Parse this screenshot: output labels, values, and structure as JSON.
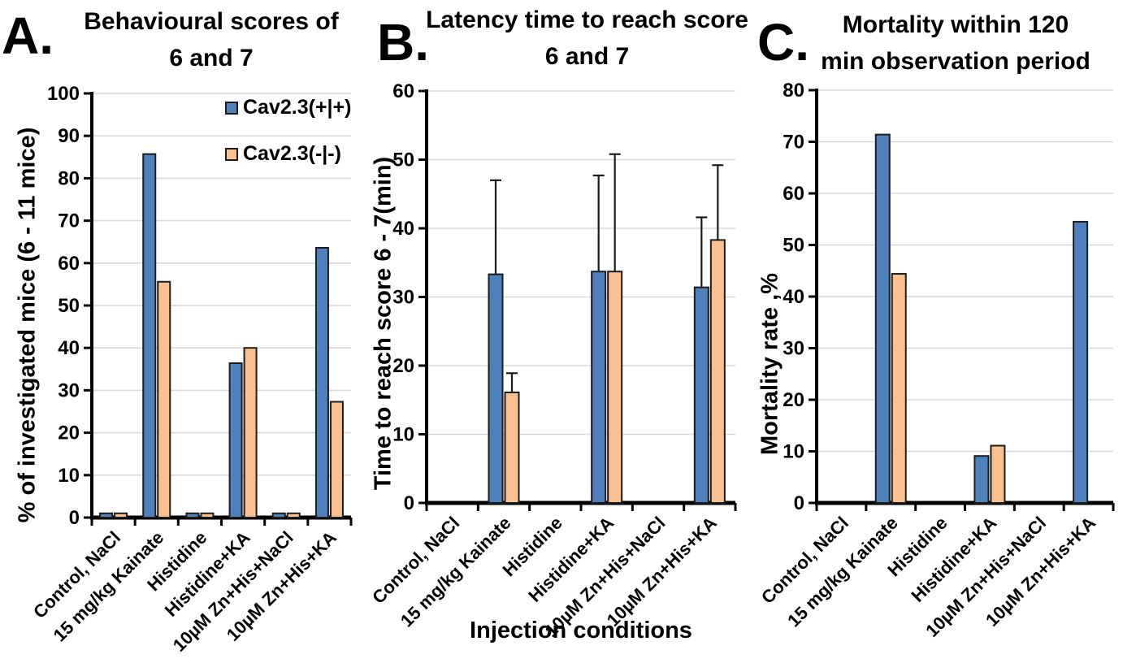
{
  "figure": {
    "panels": [
      {
        "letter": "A.",
        "title_line1": "Behavioural scores of",
        "title_line2": "6 and 7"
      },
      {
        "letter": "B.",
        "title_line1": "Latency time to reach score",
        "title_line2": "6 and 7"
      },
      {
        "letter": "C.",
        "title_line1": "Mortality within 120",
        "title_line2": "min observation period"
      }
    ],
    "colors": {
      "series_blue": "#4F81BD",
      "series_orange": "#FAC090",
      "bar_border": "#1C1C1C",
      "gridline": "#D9D9D9",
      "axis": "#000000"
    }
  },
  "chart_data": [
    {
      "type": "bar",
      "panel": "A",
      "title": "Behavioural scores of 6 and 7",
      "xlabel": "",
      "ylabel": "% of investigated mice (6 - 11 mice)",
      "ylim": [
        0,
        100
      ],
      "ytick_step": 10,
      "ytick_labels": [
        "0",
        "10",
        "20",
        "30",
        "40",
        "50",
        "60",
        "70",
        "80",
        "90",
        "100"
      ],
      "grid": true,
      "categories": [
        "Control, NaCl",
        "15 mg/kg Kainate",
        "Histidine",
        "Histidine+KA",
        "10µM Zn+His+NaCl",
        "10µM Zn+His+KA"
      ],
      "series": [
        {
          "name": "Cav2.3(+|+)",
          "color": "#4F81BD",
          "values": [
            1,
            85.7,
            1,
            36.4,
            1,
            63.6
          ]
        },
        {
          "name": "Cav2.3(-|-)",
          "color": "#FAC090",
          "values": [
            1,
            55.6,
            1,
            40,
            1,
            27.3
          ]
        }
      ],
      "legend": {
        "position": "top-right-inside",
        "entries": [
          "Cav2.3(+|+)",
          "Cav2.3(-|-)"
        ]
      }
    },
    {
      "type": "bar",
      "panel": "B",
      "title": "Latency time to reach score 6 and 7",
      "xlabel": "Injection conditions",
      "ylabel": "Time to reach score 6 - 7(min)",
      "ylim": [
        0,
        60
      ],
      "ytick_step": 10,
      "ytick_labels": [
        "0",
        "10",
        "20",
        "30",
        "40",
        "50",
        "60"
      ],
      "grid": true,
      "categories": [
        "Control, NaCl",
        "15 mg/kg Kainate",
        "Histidine",
        "Histidine+KA",
        "10µM Zn+His+NaCl",
        "10µM Zn+His+KA"
      ],
      "series": [
        {
          "name": "Cav2.3(+|+)",
          "color": "#4F81BD",
          "values": [
            0,
            33.3,
            0,
            33.7,
            0,
            31.4
          ],
          "errors_plus": [
            0,
            13.7,
            0,
            14.0,
            0,
            10.2
          ]
        },
        {
          "name": "Cav2.3(-|-)",
          "color": "#FAC090",
          "values": [
            0,
            16.1,
            0,
            33.7,
            0,
            38.3
          ],
          "errors_plus": [
            0,
            2.8,
            0,
            17.1,
            0,
            10.9
          ]
        }
      ]
    },
    {
      "type": "bar",
      "panel": "C",
      "title": "Mortality within 120 min observation period",
      "xlabel": "",
      "ylabel": "Mortality rate ,%",
      "ylim": [
        0,
        80
      ],
      "ytick_step": 10,
      "ytick_labels": [
        "0",
        "10",
        "20",
        "30",
        "40",
        "50",
        "60",
        "70",
        "80"
      ],
      "grid": true,
      "categories": [
        "Control, NaCl",
        "15 mg/kg Kainate",
        "Histidine",
        "Histidine+KA",
        "10µM Zn+His+NaCl",
        "10µM Zn+His+KA"
      ],
      "series": [
        {
          "name": "Cav2.3(+|+)",
          "color": "#4F81BD",
          "values": [
            0,
            71.4,
            0,
            9.1,
            0,
            54.5
          ]
        },
        {
          "name": "Cav2.3(-|-)",
          "color": "#FAC090",
          "values": [
            0,
            44.4,
            0,
            11.1,
            0,
            0
          ]
        }
      ]
    }
  ]
}
